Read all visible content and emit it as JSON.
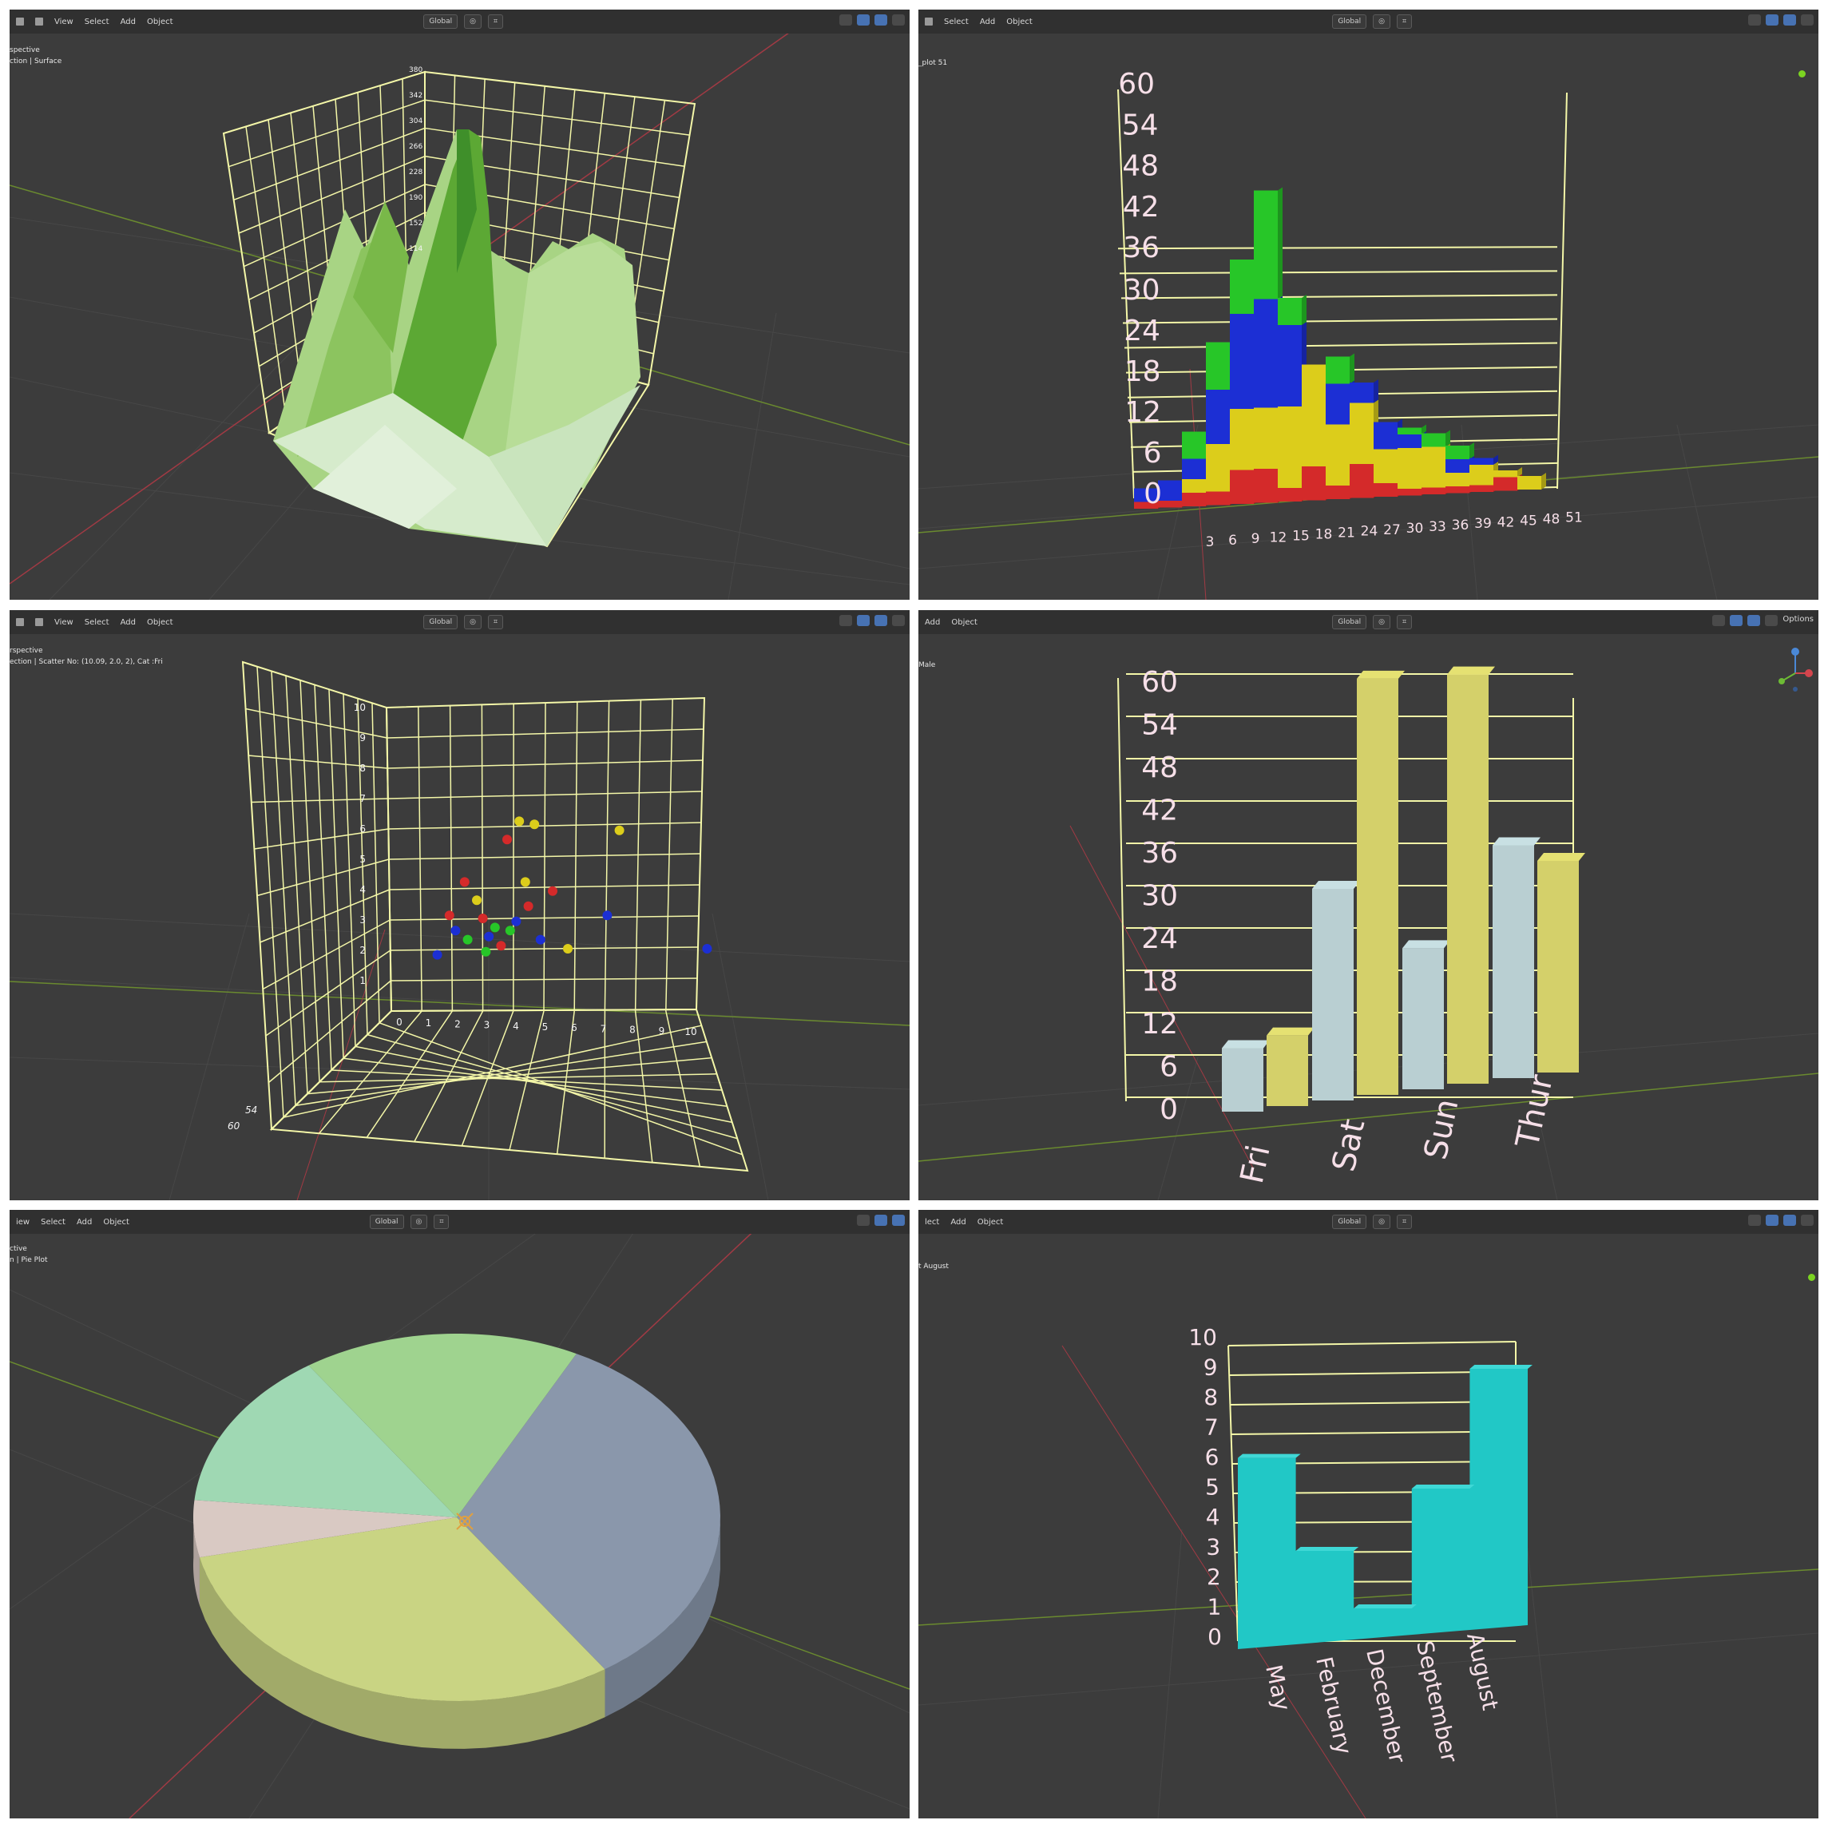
{
  "header_menu": {
    "view": "View",
    "select": "Select",
    "add": "Add",
    "object": "Object"
  },
  "header_controls": {
    "orientation": "Global",
    "options": "Options"
  },
  "panels": {
    "surface": {
      "overlay_line1": "spective",
      "overlay_line2": "ction | Surface",
      "z_ticks": [
        "380",
        "342",
        "304",
        "266",
        "228",
        "190",
        "152",
        "114"
      ]
    },
    "hist": {
      "overlay_line1": "_plot 51"
    },
    "scatter": {
      "overlay_line1": "rspective",
      "overlay_line2": "ection | Scatter No: (10.09, 2.0, 2), Cat :Fri",
      "y_ticks": [
        "10",
        "9",
        "8",
        "7",
        "6",
        "5",
        "4",
        "3",
        "2",
        "1"
      ],
      "x_ticks": [
        "0",
        "1",
        "2",
        "3",
        "4",
        "5",
        "6",
        "7",
        "8",
        "9",
        "10"
      ],
      "depth_ticks": [
        "54",
        "60"
      ]
    },
    "bar": {
      "overlay_line1": "Male"
    },
    "pie": {
      "overlay_line1": "ctive",
      "overlay_line2": "n | Pie Plot"
    },
    "step": {
      "overlay_line1": "t August"
    }
  },
  "colors": {
    "viewport_bg": "#3c3c3c",
    "grid_line": "#f4f7a8",
    "axis_label": "#f6dfe8",
    "red_axis": "#a13a44",
    "green_axis": "#6a8a2f",
    "cyan_bar": "#21c8c6"
  },
  "chart_data": [
    {
      "type": "area",
      "title": "Surface",
      "note_type": "3d surface",
      "z_ticks": [
        380,
        342,
        304,
        266,
        228,
        190,
        152,
        114
      ],
      "zlim": [
        114,
        380
      ]
    },
    {
      "type": "bar",
      "stacked": true,
      "categories": [
        "3",
        "6",
        "9",
        "12",
        "15",
        "18",
        "21",
        "24",
        "27",
        "30",
        "33",
        "36",
        "39",
        "42",
        "45",
        "48",
        "51"
      ],
      "series": [
        {
          "color": "#d42a2a",
          "values": [
            1,
            1,
            2,
            2,
            5,
            5,
            2,
            5,
            2,
            5,
            2,
            1,
            1,
            1,
            1,
            2,
            0
          ]
        },
        {
          "color": "#dccd1b",
          "values": [
            0,
            0,
            2,
            7,
            9,
            9,
            12,
            15,
            9,
            9,
            5,
            6,
            6,
            2,
            3,
            1,
            2
          ]
        },
        {
          "color": "#1c2fd4",
          "values": [
            2,
            3,
            3,
            8,
            14,
            16,
            12,
            0,
            6,
            3,
            4,
            2,
            0,
            2,
            1,
            0,
            0
          ]
        },
        {
          "color": "#27c628",
          "values": [
            0,
            0,
            4,
            7,
            8,
            16,
            4,
            0,
            4,
            0,
            0,
            1,
            2,
            2,
            0,
            0,
            0
          ]
        }
      ],
      "ylim": [
        0,
        60
      ],
      "yticks": [
        0,
        6,
        12,
        18,
        24,
        30,
        36,
        42,
        48,
        54,
        60
      ]
    },
    {
      "type": "scatter",
      "title": "Scatter",
      "series": [
        {
          "color": "#d42a2a",
          "points": [
            [
              2.1,
              4.2
            ],
            [
              3.5,
              5.6
            ],
            [
              4.2,
              3.4
            ],
            [
              1.6,
              3.1
            ],
            [
              2.7,
              3.0
            ],
            [
              5.0,
              3.9
            ],
            [
              3.3,
              2.1
            ]
          ]
        },
        {
          "color": "#1c2fd4",
          "points": [
            [
              1.8,
              2.6
            ],
            [
              2.9,
              2.4
            ],
            [
              3.8,
              2.9
            ],
            [
              6.8,
              3.1
            ],
            [
              10.09,
              2.0
            ],
            [
              1.2,
              1.8
            ],
            [
              4.6,
              2.3
            ]
          ]
        },
        {
          "color": "#dccd1b",
          "points": [
            [
              4.4,
              6.1
            ],
            [
              3.9,
              6.2
            ],
            [
              7.2,
              5.9
            ],
            [
              2.5,
              3.6
            ],
            [
              4.1,
              4.2
            ],
            [
              5.5,
              2.0
            ]
          ]
        },
        {
          "color": "#27c628",
          "points": [
            [
              2.2,
              2.3
            ],
            [
              3.1,
              2.7
            ],
            [
              2.8,
              1.9
            ],
            [
              3.6,
              2.6
            ]
          ]
        }
      ],
      "xlim": [
        0,
        10
      ],
      "ylim": [
        0,
        10
      ]
    },
    {
      "type": "bar",
      "categories": [
        "Fri",
        "Sat",
        "Sun",
        "Thur"
      ],
      "series": [
        {
          "color": "#b9cfd2",
          "values": [
            9,
            30,
            20,
            33
          ]
        },
        {
          "color": "#d4d06a",
          "values": [
            10,
            59,
            58,
            30
          ]
        }
      ],
      "ylim": [
        0,
        60
      ],
      "yticks": [
        0,
        6,
        12,
        18,
        24,
        30,
        36,
        42,
        48,
        54,
        60
      ]
    },
    {
      "type": "pie",
      "title": "Pie Plot",
      "slices": [
        {
          "color": "#8a97ab",
          "value": 33
        },
        {
          "color": "#c9d483",
          "value": 31
        },
        {
          "color": "#d9c9c3",
          "value": 5
        },
        {
          "color": "#9fd8b3",
          "value": 14
        },
        {
          "color": "#9fd38f",
          "value": 17
        }
      ]
    },
    {
      "type": "area",
      "title": "August",
      "categories": [
        "May",
        "February",
        "December",
        "September",
        "August"
      ],
      "values": [
        6.2,
        3.0,
        1.0,
        5.0,
        9.0
      ],
      "ylim": [
        0,
        10
      ],
      "yticks": [
        0,
        1,
        2,
        3,
        4,
        5,
        6,
        7,
        8,
        9,
        10
      ]
    }
  ]
}
